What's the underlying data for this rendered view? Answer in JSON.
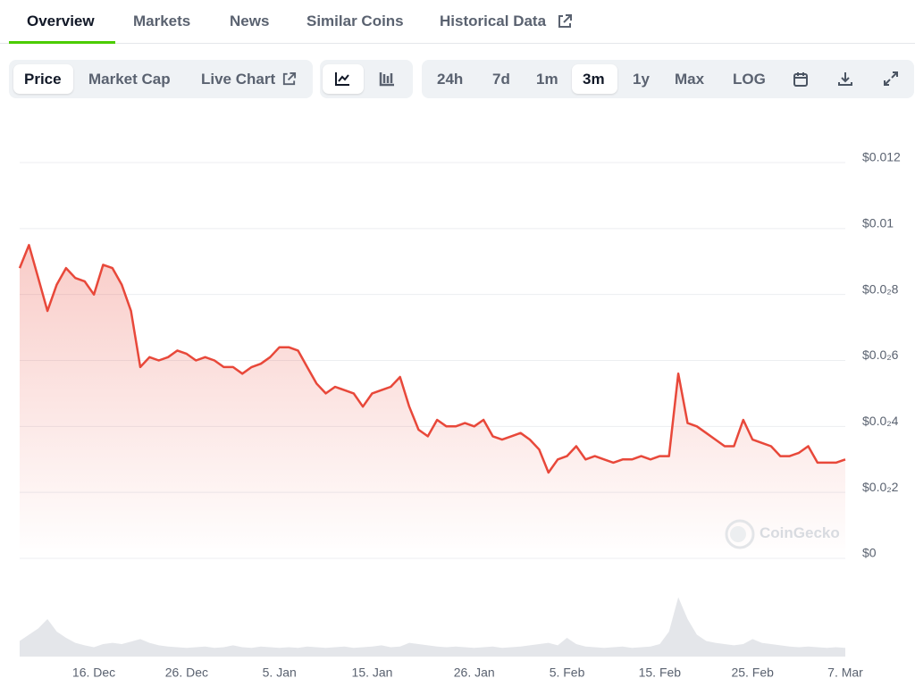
{
  "nav": {
    "tabs": [
      "Overview",
      "Markets",
      "News",
      "Similar Coins",
      "Historical Data"
    ],
    "views": [
      "Price",
      "Market Cap",
      "Live Chart"
    ],
    "ranges": [
      "24h",
      "7d",
      "1m",
      "3m",
      "1y",
      "Max",
      "LOG"
    ],
    "watermark": "CoinGecko"
  },
  "chart_data": {
    "type": "line",
    "categories": [
      null,
      null,
      null,
      null,
      null,
      null,
      null,
      null,
      "16. Dec",
      null,
      null,
      null,
      null,
      null,
      null,
      null,
      null,
      null,
      "26. Dec",
      null,
      null,
      null,
      null,
      null,
      null,
      null,
      null,
      null,
      "5. Jan",
      null,
      null,
      null,
      null,
      null,
      null,
      null,
      null,
      null,
      "15. Jan",
      null,
      null,
      null,
      null,
      null,
      null,
      null,
      null,
      null,
      null,
      "26. Jan",
      null,
      null,
      null,
      null,
      null,
      null,
      null,
      null,
      null,
      "5. Feb",
      null,
      null,
      null,
      null,
      null,
      null,
      null,
      null,
      null,
      "15. Feb",
      null,
      null,
      null,
      null,
      null,
      null,
      null,
      null,
      null,
      "25. Feb",
      null,
      null,
      null,
      null,
      null,
      null,
      null,
      null,
      null,
      "7. Mar"
    ],
    "series": [
      {
        "color": "#e8483a",
        "values": [
          0.0088,
          0.0095,
          0.0085,
          0.0075,
          0.0083,
          0.0088,
          0.0085,
          0.0084,
          0.008,
          0.0089,
          0.0088,
          0.0083,
          0.0075,
          0.0058,
          0.0061,
          0.006,
          0.0061,
          0.0063,
          0.0062,
          0.006,
          0.0061,
          0.006,
          0.0058,
          0.0058,
          0.0056,
          0.0058,
          0.0059,
          0.0061,
          0.0064,
          0.0064,
          0.0063,
          0.0058,
          0.0053,
          0.005,
          0.0052,
          0.0051,
          0.005,
          0.0046,
          0.005,
          0.0051,
          0.0052,
          0.0055,
          0.0046,
          0.0039,
          0.0037,
          0.0042,
          0.004,
          0.004,
          0.0041,
          0.004,
          0.0042,
          0.0037,
          0.0036,
          0.0037,
          0.0038,
          0.0036,
          0.0033,
          0.0026,
          0.003,
          0.0031,
          0.0034,
          0.003,
          0.0031,
          0.003,
          0.0029,
          0.003,
          0.003,
          0.0031,
          0.003,
          0.0031,
          0.0031,
          0.0056,
          0.0041,
          0.004,
          0.0038,
          0.0036,
          0.0034,
          0.0034,
          0.0042,
          0.0036,
          0.0035,
          0.0034,
          0.0031,
          0.0031,
          0.0032,
          0.0034,
          0.0029,
          0.0029,
          0.0029,
          0.003
        ]
      }
    ],
    "volume": {
      "color": "#e4e6ea",
      "lim": [
        0,
        100
      ],
      "values": [
        25,
        35,
        45,
        60,
        40,
        30,
        22,
        18,
        15,
        20,
        22,
        20,
        24,
        28,
        22,
        18,
        16,
        15,
        14,
        15,
        16,
        14,
        15,
        18,
        15,
        14,
        16,
        15,
        14,
        15,
        14,
        16,
        15,
        14,
        15,
        16,
        14,
        15,
        16,
        18,
        15,
        16,
        22,
        20,
        18,
        16,
        15,
        16,
        15,
        14,
        15,
        16,
        14,
        15,
        16,
        18,
        20,
        22,
        18,
        30,
        20,
        16,
        15,
        14,
        15,
        16,
        14,
        15,
        16,
        20,
        40,
        95,
        60,
        35,
        25,
        22,
        20,
        18,
        20,
        28,
        22,
        20,
        18,
        16,
        15,
        16,
        15,
        14,
        15,
        14
      ]
    },
    "ylim": [
      0,
      0.012
    ],
    "yticks": [
      {
        "value": 0,
        "label": "$0"
      },
      {
        "value": 0.002,
        "label": "$0.0₂2"
      },
      {
        "value": 0.004,
        "label": "$0.0₂4"
      },
      {
        "value": 0.006,
        "label": "$0.0₂6"
      },
      {
        "value": 0.008,
        "label": "$0.0₂8"
      },
      {
        "value": 0.01,
        "label": "$0.01"
      },
      {
        "value": 0.012,
        "label": "$0.012"
      }
    ],
    "grid": true
  }
}
